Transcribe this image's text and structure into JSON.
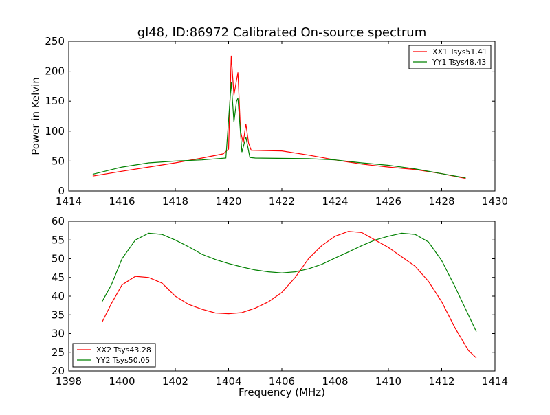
{
  "chart_data": [
    {
      "type": "line",
      "title": "gl48, ID:86972 Calibrated On-source spectrum",
      "xlabel": "",
      "ylabel": "Power in Kelvin",
      "xlim": [
        1414,
        1430
      ],
      "ylim": [
        0,
        250
      ],
      "xticks": [
        1414,
        1416,
        1418,
        1420,
        1422,
        1424,
        1426,
        1428,
        1430
      ],
      "yticks": [
        0,
        50,
        100,
        150,
        200,
        250
      ],
      "legend_position": "top-right",
      "series": [
        {
          "name": "XX1 Tsys51.41",
          "color": "#ff0000",
          "x": [
            1414.9,
            1416,
            1417,
            1418,
            1419,
            1419.8,
            1420.0,
            1420.1,
            1420.2,
            1420.3,
            1420.35,
            1420.45,
            1420.55,
            1420.65,
            1420.75,
            1420.85,
            1422,
            1423,
            1424,
            1425,
            1426,
            1427,
            1428,
            1428.9
          ],
          "y": [
            25,
            33,
            40,
            47,
            55,
            62,
            70,
            226,
            160,
            185,
            198,
            100,
            80,
            112,
            80,
            68,
            67,
            60,
            52,
            45,
            40,
            36,
            29,
            21
          ]
        },
        {
          "name": "YY1 Tsys48.43",
          "color": "#008000",
          "x": [
            1414.9,
            1416,
            1417,
            1418,
            1419,
            1419.9,
            1420.1,
            1420.2,
            1420.3,
            1420.35,
            1420.5,
            1420.65,
            1420.8,
            1421,
            1423,
            1424,
            1425,
            1426,
            1427,
            1428,
            1428.9
          ],
          "y": [
            28,
            40,
            47,
            50,
            52,
            55,
            182,
            115,
            150,
            155,
            65,
            90,
            56,
            55,
            54,
            52,
            47,
            43,
            37,
            29,
            22
          ]
        }
      ]
    },
    {
      "type": "line",
      "title": "",
      "xlabel": "Frequency (MHz)",
      "ylabel": "",
      "xlim": [
        1398,
        1414
      ],
      "ylim": [
        20,
        60
      ],
      "xticks": [
        1398,
        1400,
        1402,
        1404,
        1406,
        1408,
        1410,
        1412,
        1414
      ],
      "yticks": [
        20,
        25,
        30,
        35,
        40,
        45,
        50,
        55,
        60
      ],
      "legend_position": "bottom-left",
      "series": [
        {
          "name": "XX2 Tsys43.28",
          "color": "#ff0000",
          "x": [
            1399.25,
            1399.6,
            1400,
            1400.5,
            1401,
            1401.5,
            1402,
            1402.5,
            1403,
            1403.5,
            1404,
            1404.5,
            1405,
            1405.5,
            1406,
            1406.5,
            1407,
            1407.5,
            1408,
            1408.5,
            1409,
            1409.5,
            1410,
            1410.5,
            1411,
            1411.5,
            1412,
            1412.5,
            1413,
            1413.3
          ],
          "y": [
            33,
            38,
            43,
            45.3,
            45,
            43.5,
            40,
            37.8,
            36.5,
            35.5,
            35.3,
            35.6,
            36.8,
            38.5,
            41,
            45,
            50,
            53.5,
            56,
            57.3,
            57,
            55,
            53,
            50.5,
            48,
            44,
            38.5,
            31.5,
            25.5,
            23.5
          ]
        },
        {
          "name": "YY2 Tsys50.05",
          "color": "#008000",
          "x": [
            1399.25,
            1399.6,
            1400,
            1400.5,
            1401,
            1401.5,
            1402,
            1402.5,
            1403,
            1403.5,
            1404,
            1404.5,
            1405,
            1405.5,
            1406,
            1406.5,
            1407,
            1407.5,
            1408,
            1408.5,
            1409,
            1409.5,
            1410,
            1410.5,
            1411,
            1411.5,
            1412,
            1412.5,
            1413,
            1413.3
          ],
          "y": [
            38.5,
            43,
            50,
            55,
            56.8,
            56.5,
            55,
            53.2,
            51.2,
            49.8,
            48.7,
            47.8,
            47,
            46.5,
            46.2,
            46.5,
            47.3,
            48.5,
            50.2,
            51.8,
            53.5,
            55,
            56,
            56.8,
            56.5,
            54.5,
            49.5,
            42.5,
            35,
            30.5
          ]
        }
      ]
    }
  ]
}
